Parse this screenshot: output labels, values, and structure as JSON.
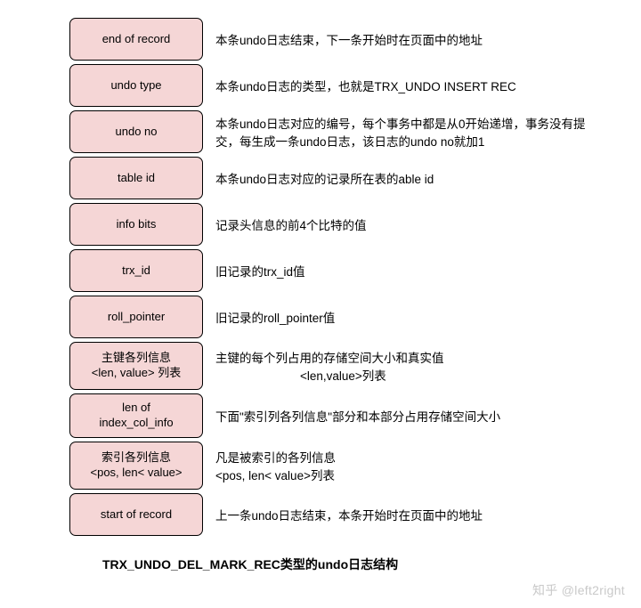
{
  "cell_bg": "#f5d6d6",
  "rows": [
    {
      "label": "end of record",
      "desc": "本条undo日志结束，下一条开始时在页面中的地址",
      "h": 48
    },
    {
      "label": "undo type",
      "desc": "本条undo日志的类型，也就是TRX_UNDO INSERT REC",
      "h": 48
    },
    {
      "label": "undo no",
      "desc": "本条undo日志对应的编号，每个事务中都是从0开始递增，事务没有提交，每生成一条undo日志，该日志的undo no就加1",
      "h": 48
    },
    {
      "label": "table id",
      "desc": "本条undo日志对应的记录所在表的able id",
      "h": 48
    },
    {
      "label": "info bits",
      "desc": "记录头信息的前4个比特的值",
      "h": 48
    },
    {
      "label": "trx_id",
      "desc": "旧记录的trx_id值",
      "h": 48
    },
    {
      "label": "roll_pointer",
      "desc": "旧记录的roll_pointer值",
      "h": 48
    },
    {
      "label": "主键各列信息\n<len, value> 列表",
      "desc": "主键的每个列占用的存储空间大小和真实值\n<len,value>列表",
      "indent_line2": true,
      "h": 54
    },
    {
      "label": "len of\nindex_col_info",
      "desc": "下面\"索引列各列信息\"部分和本部分占用存储空间大小",
      "h": 50
    },
    {
      "label": "索引各列信息\n<pos, len< value>",
      "desc": "凡是被索引的各列信息\n<pos, len< value>列表",
      "h": 54
    },
    {
      "label": "start of record",
      "desc": "上一条undo日志结束，本条开始时在页面中的地址",
      "h": 48
    }
  ],
  "title": "TRX_UNDO_DEL_MARK_REC类型的undo日志结构",
  "watermark": "知乎 @left2right"
}
